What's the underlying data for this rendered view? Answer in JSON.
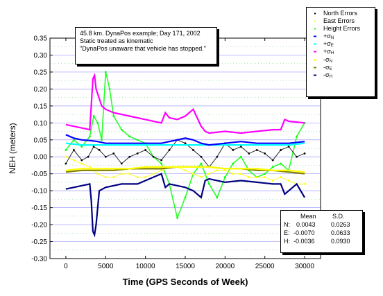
{
  "chart_data": {
    "type": "scatter",
    "xlabel": "Time (GPS Seconds of Week)",
    "ylabel": "NEH (meters)",
    "xlim": [
      -2000,
      32000
    ],
    "ylim": [
      -0.3,
      0.35
    ],
    "x_ticks": [
      0,
      5000,
      10000,
      15000,
      20000,
      25000,
      30000
    ],
    "y_ticks": [
      0.35,
      0.3,
      0.25,
      0.2,
      0.15,
      0.1,
      0.05,
      0.0,
      -0.05,
      -0.1,
      -0.15,
      -0.2,
      -0.25,
      -0.3
    ],
    "y_tick_labels": [
      "0.35",
      "0.30",
      "0.25",
      "0.20",
      "0.15",
      "0.10",
      "0.05",
      "0.00",
      "-0.05",
      "-0.10",
      "-0.15",
      "-0.20",
      "-0.25",
      "-0.30"
    ],
    "grid": "horizontal",
    "legend_position": "top-right",
    "annotation": [
      "45.8 km. DynaPos example; Day 171, 2002",
      "Static treated as kinematic",
      "\"DynaPos unaware that vehicle has stopped.\""
    ],
    "series": [
      {
        "key": "north",
        "name": "North Errors",
        "symbol": "point",
        "color": "#000000",
        "x": [
          0,
          1000,
          2000,
          2800,
          3500,
          4200,
          5000,
          6000,
          7000,
          8000,
          9000,
          10000,
          11000,
          12000,
          13000,
          14000,
          15000,
          16000,
          17000,
          18000,
          19000,
          20000,
          21000,
          22000,
          23000,
          24000,
          25000,
          26000,
          27000,
          28000,
          29000,
          30000
        ],
        "y": [
          -0.02,
          0.02,
          -0.01,
          0.0,
          0.03,
          0.02,
          0.0,
          0.01,
          -0.02,
          0.0,
          0.01,
          0.02,
          0.0,
          -0.01,
          0.02,
          0.05,
          0.04,
          0.02,
          0.0,
          -0.03,
          0.0,
          0.04,
          0.02,
          0.03,
          0.01,
          0.02,
          0.01,
          -0.01,
          0.02,
          0.03,
          0.0,
          0.01
        ]
      },
      {
        "key": "east",
        "name": "East Errors",
        "symbol": "point",
        "color": "#ffff00",
        "x": [
          0,
          1000,
          2000,
          3000,
          4000,
          5000,
          6000,
          7000,
          8000,
          9000,
          10000,
          11000,
          12000,
          13000,
          14000,
          15000,
          16000,
          17000,
          18000,
          19000,
          20000,
          21000,
          22000,
          23000,
          24000,
          25000,
          26000,
          27000,
          28000,
          29000,
          30000
        ],
        "y": [
          0.0,
          -0.01,
          -0.02,
          -0.03,
          -0.05,
          -0.06,
          -0.06,
          -0.05,
          -0.05,
          -0.06,
          -0.06,
          -0.05,
          -0.04,
          -0.03,
          -0.03,
          -0.04,
          -0.05,
          -0.06,
          -0.05,
          -0.04,
          -0.04,
          -0.05,
          -0.05,
          -0.06,
          -0.06,
          -0.06,
          -0.07,
          -0.06,
          -0.07,
          -0.08,
          -0.08
        ]
      },
      {
        "key": "height",
        "name": "Height Errors",
        "symbol": "point",
        "color": "#00ff00",
        "x": [
          0,
          1000,
          2000,
          3000,
          3500,
          4000,
          4500,
          5000,
          5500,
          6000,
          7000,
          8000,
          9000,
          10000,
          11000,
          12000,
          13000,
          14000,
          15000,
          16000,
          17000,
          18000,
          19000,
          20000,
          21000,
          22000,
          23000,
          24000,
          25000,
          26000,
          27000,
          28000,
          29000,
          30000
        ],
        "y": [
          0.02,
          0.05,
          0.03,
          0.06,
          0.12,
          0.1,
          0.05,
          0.25,
          0.2,
          0.12,
          0.08,
          0.06,
          0.05,
          0.04,
          0.0,
          -0.02,
          -0.08,
          -0.18,
          -0.12,
          -0.05,
          -0.02,
          -0.08,
          -0.12,
          -0.06,
          -0.02,
          0.0,
          -0.04,
          -0.06,
          -0.05,
          -0.03,
          -0.02,
          -0.04,
          0.06,
          0.1
        ]
      },
      {
        "key": "pos_sn",
        "name": "+σN",
        "label_main": "+σ",
        "label_sub": "N",
        "symbol": "line",
        "color": "#0000ff",
        "x": [
          0,
          1000,
          2000,
          3000,
          4000,
          5000,
          7000,
          10000,
          12000,
          13000,
          14000,
          15000,
          16000,
          17000,
          18000,
          20000,
          22000,
          24000,
          26000,
          28000,
          30000
        ],
        "y": [
          0.065,
          0.055,
          0.05,
          0.048,
          0.045,
          0.04,
          0.04,
          0.04,
          0.04,
          0.045,
          0.05,
          0.055,
          0.05,
          0.04,
          0.035,
          0.04,
          0.045,
          0.04,
          0.04,
          0.04,
          0.045
        ]
      },
      {
        "key": "pos_se",
        "name": "+σE",
        "label_main": "+σ",
        "label_sub": "E",
        "symbol": "line",
        "color": "#00ffff",
        "x": [
          0,
          2000,
          4000,
          6000,
          8000,
          10000,
          12000,
          14000,
          16000,
          18000,
          20000,
          22000,
          24000,
          26000,
          28000,
          30000
        ],
        "y": [
          0.04,
          0.035,
          0.035,
          0.035,
          0.035,
          0.035,
          0.035,
          0.035,
          0.035,
          0.035,
          0.035,
          0.035,
          0.035,
          0.035,
          0.035,
          0.04
        ]
      },
      {
        "key": "pos_sh",
        "name": "+σH",
        "label_main": "+σ",
        "label_sub": "H",
        "symbol": "line",
        "color": "#ff00ff",
        "x": [
          0,
          1000,
          2000,
          3000,
          3400,
          3600,
          3800,
          4500,
          5000,
          6000,
          8000,
          10000,
          11000,
          12000,
          12500,
          13000,
          14000,
          15000,
          16000,
          17000,
          17500,
          18000,
          20000,
          22000,
          24000,
          26000,
          27000,
          27500,
          28000,
          30000
        ],
        "y": [
          0.095,
          0.09,
          0.085,
          0.08,
          0.23,
          0.24,
          0.2,
          0.15,
          0.14,
          0.13,
          0.12,
          0.11,
          0.105,
          0.1,
          0.13,
          0.115,
          0.11,
          0.12,
          0.14,
          0.09,
          0.075,
          0.07,
          0.075,
          0.07,
          0.075,
          0.08,
          0.08,
          0.11,
          0.105,
          0.1
        ]
      },
      {
        "key": "neg_sn",
        "name": "-σN",
        "label_main": "-σ",
        "label_sub": "N",
        "symbol": "line",
        "color": "#ffff00",
        "x": [
          0,
          2000,
          4000,
          6000,
          8000,
          10000,
          12000,
          14000,
          16000,
          18000,
          20000,
          22000,
          24000,
          26000,
          28000,
          30000
        ],
        "y": [
          -0.04,
          -0.035,
          -0.035,
          -0.035,
          -0.035,
          -0.03,
          -0.03,
          -0.03,
          -0.03,
          -0.03,
          -0.035,
          -0.035,
          -0.035,
          -0.04,
          -0.04,
          -0.045
        ]
      },
      {
        "key": "neg_se",
        "name": "-σE",
        "label_main": "-σ",
        "label_sub": "E",
        "symbol": "line",
        "color": "#808000",
        "x": [
          0,
          2000,
          4000,
          6000,
          8000,
          10000,
          12000,
          14000,
          16000,
          18000,
          20000,
          22000,
          24000,
          26000,
          28000,
          30000
        ],
        "y": [
          -0.045,
          -0.04,
          -0.04,
          -0.04,
          -0.035,
          -0.035,
          -0.035,
          -0.03,
          -0.03,
          -0.03,
          -0.035,
          -0.035,
          -0.04,
          -0.04,
          -0.045,
          -0.05
        ]
      },
      {
        "key": "neg_sh",
        "name": "-σH",
        "label_main": "-σ",
        "label_sub": "H",
        "symbol": "line",
        "color": "#000080",
        "x": [
          0,
          1000,
          2000,
          3000,
          3200,
          3400,
          3600,
          3800,
          4000,
          4200,
          5000,
          7000,
          9000,
          10000,
          11000,
          12000,
          12500,
          13000,
          14000,
          15000,
          16000,
          17000,
          17500,
          18000,
          20000,
          22000,
          24000,
          26000,
          27000,
          27500,
          28000,
          29000,
          30000
        ],
        "y": [
          -0.095,
          -0.09,
          -0.085,
          -0.08,
          -0.13,
          -0.22,
          -0.23,
          -0.2,
          -0.15,
          -0.1,
          -0.09,
          -0.08,
          -0.08,
          -0.07,
          -0.06,
          -0.05,
          -0.09,
          -0.08,
          -0.085,
          -0.09,
          -0.1,
          -0.12,
          -0.07,
          -0.065,
          -0.075,
          -0.07,
          -0.075,
          -0.08,
          -0.08,
          -0.11,
          -0.1,
          -0.08,
          -0.12
        ]
      }
    ],
    "stats": {
      "header": [
        "Mean",
        "S.D."
      ],
      "rows": [
        {
          "label": "N:",
          "mean": "0.0043",
          "sd": "0.0263"
        },
        {
          "label": "E:",
          "mean": "-0.0070",
          "sd": "0.0633"
        },
        {
          "label": "H:",
          "mean": "-0.0036",
          "sd": "0.0930"
        }
      ]
    }
  }
}
